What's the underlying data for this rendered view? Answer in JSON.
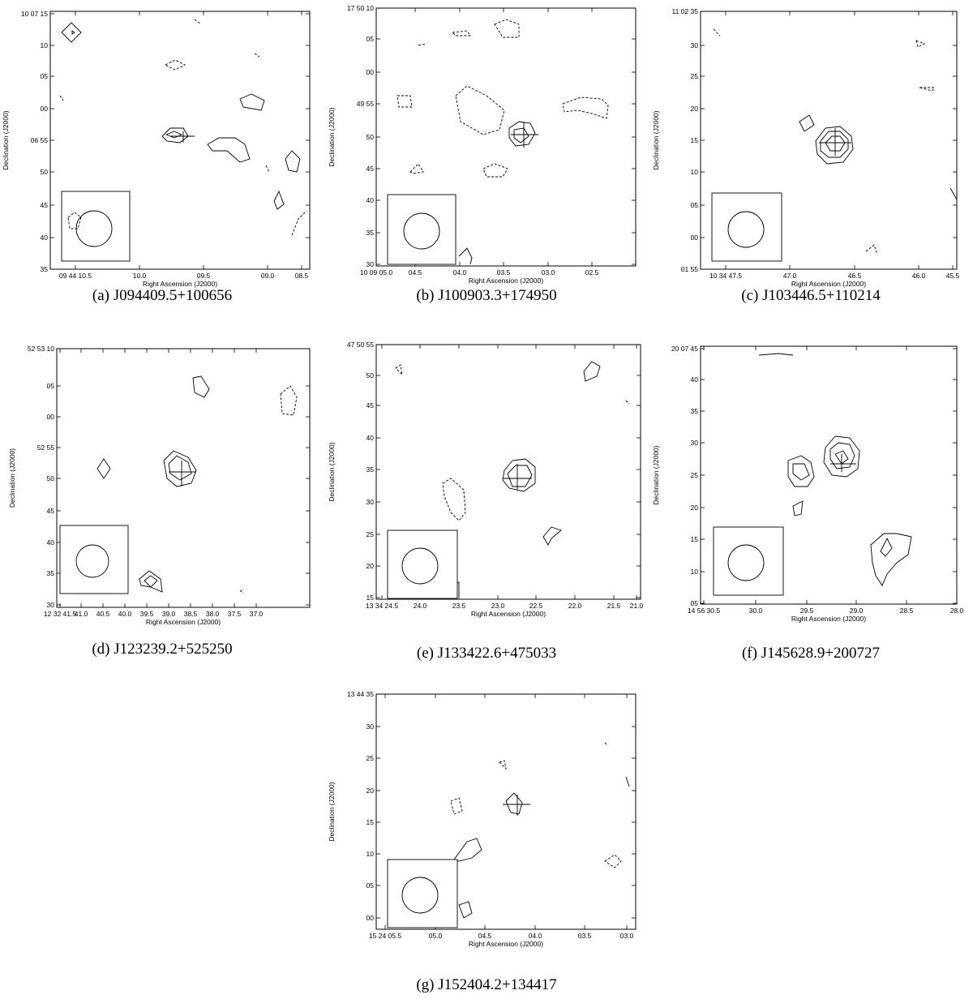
{
  "panels": [
    {
      "id": "a",
      "caption": "(a) J094409.5+100656",
      "xlabel": "Right Ascension (J2000)",
      "ylabel": "Declination (J2000)",
      "xticks": [
        "09 44 10.5",
        "10.0",
        "09.5",
        "09.0",
        "08.5"
      ],
      "yticks": [
        "10 07 15",
        "10",
        "05",
        "00",
        "06 55",
        "50",
        "45",
        "40",
        "35"
      ]
    },
    {
      "id": "b",
      "caption": "(b) J100903.3+174950",
      "xlabel": "Right Ascension (J2000)",
      "ylabel": "Declination (J2000)",
      "xticks": [
        "10 09 05.0",
        "04.5",
        "04.0",
        "03.5",
        "03.0",
        "02.5"
      ],
      "yticks": [
        "17 50 10",
        "05",
        "00",
        "49 55",
        "50",
        "45",
        "40",
        "35",
        "30"
      ]
    },
    {
      "id": "c",
      "caption": "(c) J103446.5+110214",
      "xlabel": "Right Ascension (J2000)",
      "ylabel": "Declination (J2000)",
      "xticks": [
        "10 34 47.5",
        "47.0",
        "46.5",
        "46.0",
        "45.5"
      ],
      "yticks": [
        "11 02 35",
        "30",
        "25",
        "20",
        "15",
        "10",
        "05",
        "00",
        "01 55"
      ]
    },
    {
      "id": "d",
      "caption": "(d) J123239.2+525250",
      "xlabel": "Right Ascension (J2000)",
      "ylabel": "Declination (J2000)",
      "xticks": [
        "12 32 41.5",
        "41.0",
        "40.5",
        "40.0",
        "39.5",
        "39.0",
        "38.5",
        "38.0",
        "37.5",
        "37.0"
      ],
      "yticks": [
        "52 53 10",
        "05",
        "00",
        "52 55",
        "50",
        "45",
        "40",
        "35",
        "30"
      ]
    },
    {
      "id": "e",
      "caption": "(e) J133422.6+475033",
      "xlabel": "Right Ascension (J2000)",
      "ylabel": "Declination (J2000)",
      "xticks": [
        "13 34 24.5",
        "24.0",
        "23.5",
        "23.0",
        "22.5",
        "22.0",
        "21.5",
        "21.0"
      ],
      "yticks": [
        "47 50 55",
        "50",
        "45",
        "40",
        "35",
        "30",
        "25",
        "20",
        "15"
      ]
    },
    {
      "id": "f",
      "caption": "(f) J145628.9+200727",
      "xlabel": "Right Ascension (J2000)",
      "ylabel": "Declination (J2000)",
      "xticks": [
        "14 56 30.5",
        "30.0",
        "29.5",
        "29.0",
        "28.5",
        "28.0"
      ],
      "yticks": [
        "20 07 45",
        "40",
        "35",
        "30",
        "25",
        "20",
        "15",
        "10",
        "05"
      ]
    },
    {
      "id": "g",
      "caption": "(g) J152404.2+134417",
      "xlabel": "Right Ascension (J2000)",
      "ylabel": "Declination (J2000)",
      "xticks": [
        "15 24 05.5",
        "05.0",
        "04.5",
        "04.0",
        "03.5",
        "03.0"
      ],
      "yticks": [
        "13 44 35",
        "30",
        "25",
        "20",
        "15",
        "10",
        "05",
        "00"
      ]
    }
  ]
}
